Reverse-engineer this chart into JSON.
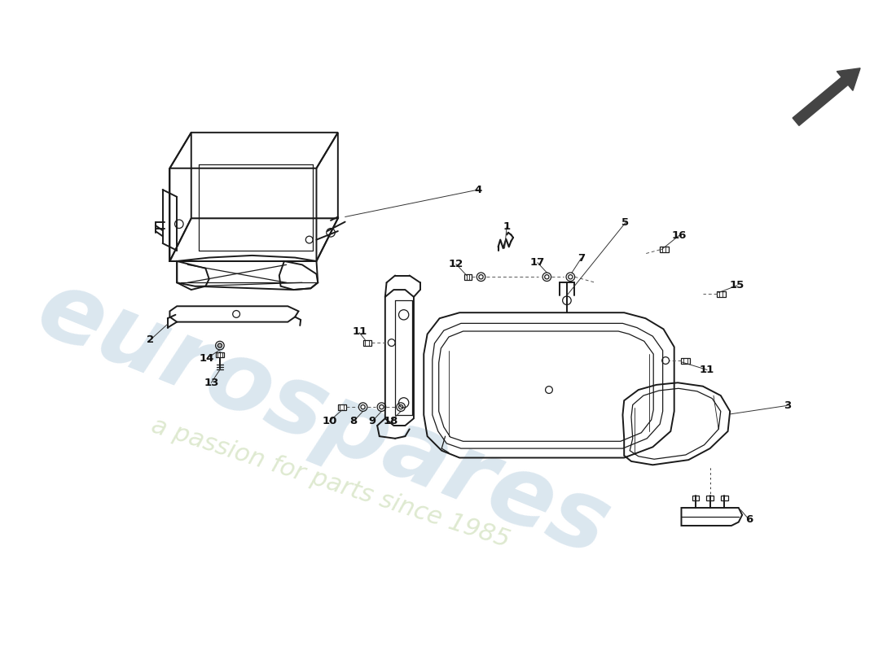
{
  "bg_color": "#ffffff",
  "line_color": "#1a1a1a",
  "label_color": "#111111",
  "watermark1": "eurospares",
  "watermark2": "a passion for parts since 1985",
  "wm1_color": "#b8cfe0",
  "wm2_color": "#c8dbb0",
  "arrow_color": "#555555"
}
